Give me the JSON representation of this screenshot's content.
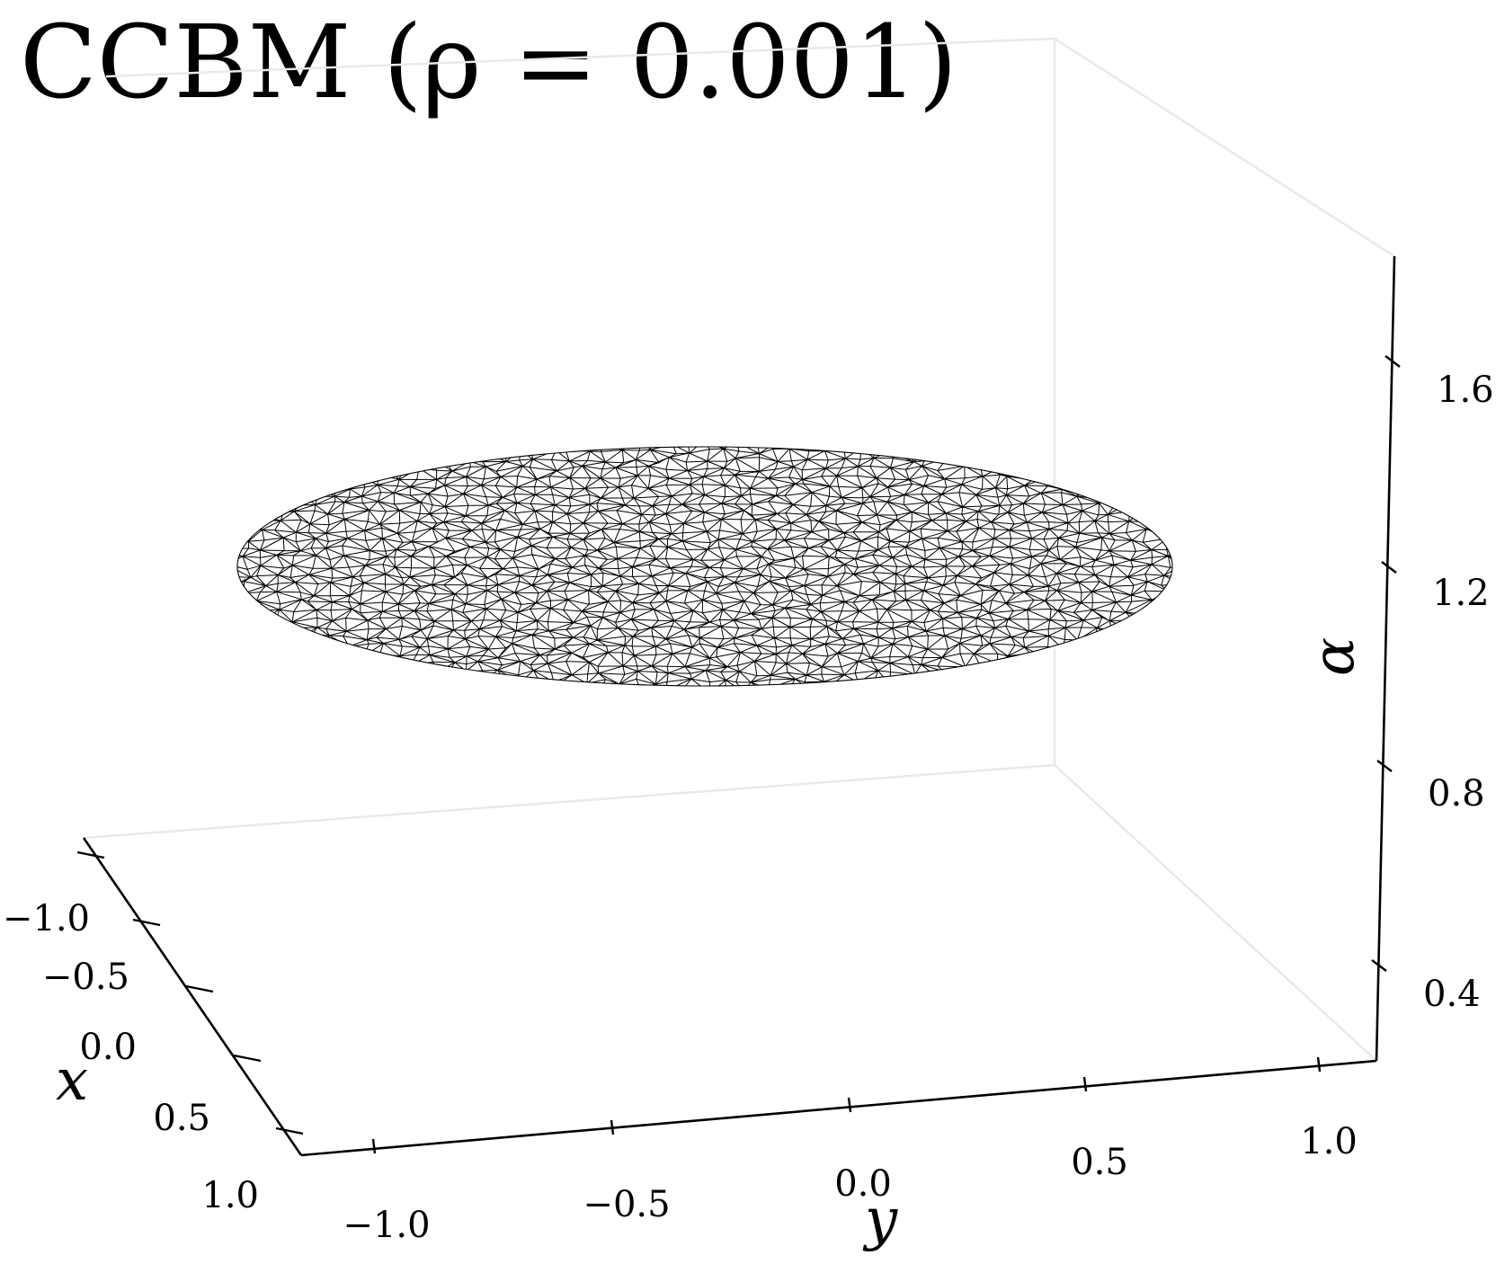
{
  "chart_data": {
    "type": "surface3d",
    "title": "CCBM (ρ = 0.001)",
    "xlabel": "x",
    "ylabel": "y",
    "zlabel": "α",
    "x_ticks": [
      "−1.0",
      "−0.5",
      "0.0",
      "0.5",
      "1.0"
    ],
    "y_ticks": [
      "−1.0",
      "−0.5",
      "0.0",
      "0.5",
      "1.0"
    ],
    "z_ticks": [
      "0.4",
      "0.8",
      "1.2",
      "1.6"
    ],
    "xlim": [
      -1.0,
      1.0
    ],
    "ylim": [
      -1.0,
      1.0
    ],
    "zlim": [
      0.4,
      1.6
    ],
    "surface": {
      "shape": "disk",
      "radius": 1.0,
      "z_value": 1.27,
      "mesh": "triangular wireframe",
      "color": "#000000"
    },
    "grid": false,
    "legend": "none"
  }
}
